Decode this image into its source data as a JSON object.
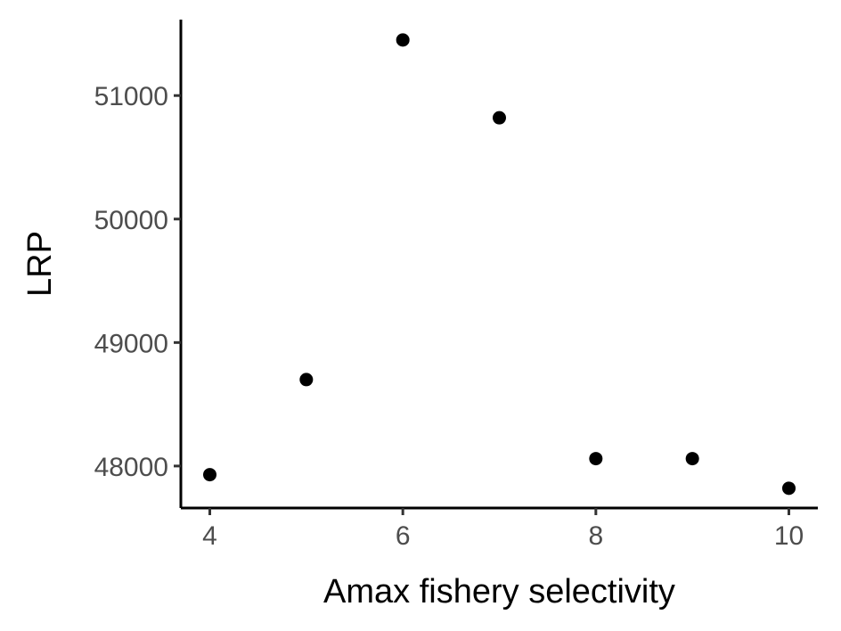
{
  "chart_data": {
    "type": "scatter",
    "title": "",
    "xlabel": "Amax fishery selectivity",
    "ylabel": "LRP",
    "x": [
      4,
      5,
      6,
      7,
      8,
      9,
      10
    ],
    "y": [
      47930,
      48700,
      51450,
      50820,
      48060,
      48060,
      47820
    ],
    "xlim": [
      3.7,
      10.3
    ],
    "ylim": [
      47660,
      51615
    ],
    "xticks": [
      4,
      6,
      8,
      10
    ],
    "yticks": [
      48000,
      49000,
      50000,
      51000
    ],
    "xtick_labels": [
      "4",
      "6",
      "8",
      "10"
    ],
    "ytick_labels": [
      "48000",
      "49000",
      "50000",
      "51000"
    ],
    "grid": false,
    "legend": "none",
    "point_color": "#000000"
  }
}
